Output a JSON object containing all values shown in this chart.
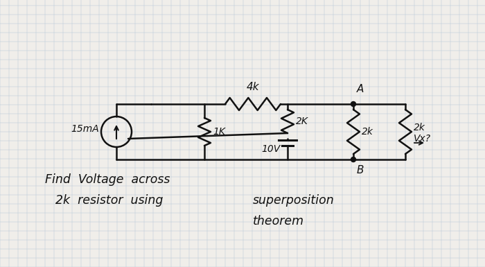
{
  "bg_color": "#f0eeea",
  "grid_color": "#b8c8d8",
  "line_color": "#111111",
  "figsize": [
    7.0,
    3.85
  ],
  "dpi": 100,
  "label_15mA": "15mA",
  "label_1K": "1K",
  "label_4K": "4k",
  "label_2K_mid": "2K",
  "label_2K_right": "2k",
  "label_10V": "10V",
  "label_A": "A",
  "label_B": "B",
  "label_Vx": "Vx?",
  "text_line1": "Find  Voltage  across",
  "text_line2": "  2k  resistor  using   superposition",
  "text_line3": "                             theorem"
}
